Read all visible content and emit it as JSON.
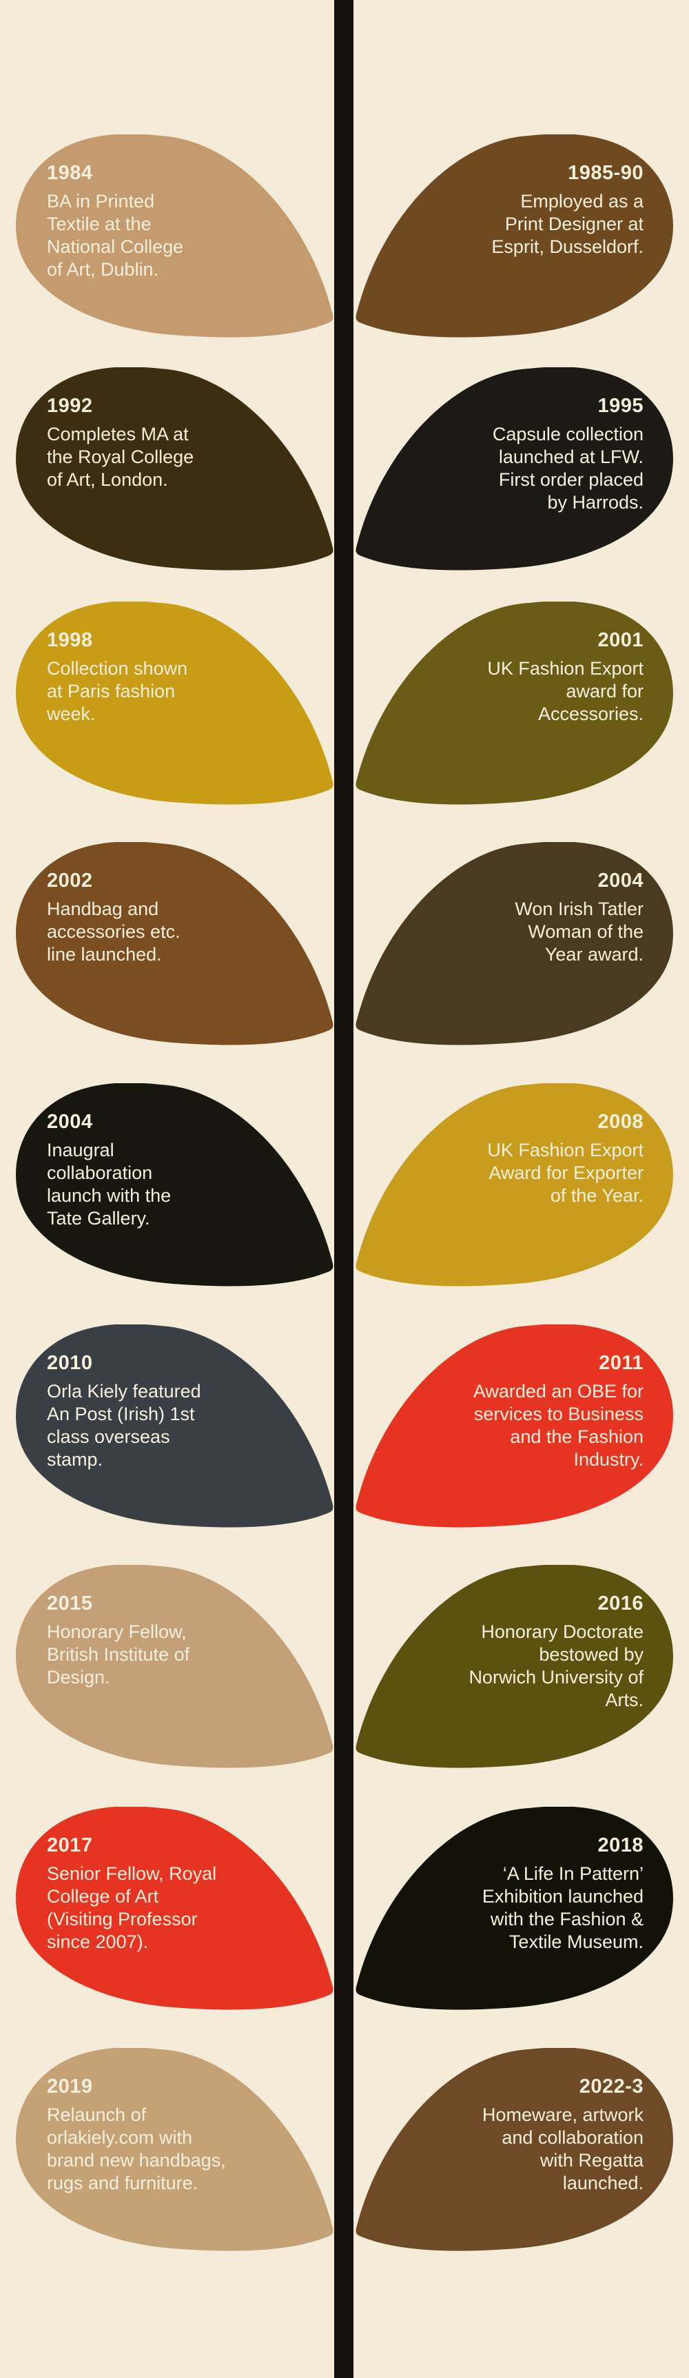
{
  "page": {
    "background_color": "#f4ecd8",
    "stem_color": "#14110c",
    "text_color": "#f6efdc"
  },
  "timeline": {
    "milestones": [
      {
        "year": "1984",
        "side": "left",
        "color": "#c49b6e",
        "description": "BA in Printed\nTextile at the\nNational College\nof Art, Dublin."
      },
      {
        "year": "1985-90",
        "side": "right",
        "color": "#6f4a21",
        "description": "Employed as a\nPrint Designer at\nEsprit, Dusseldorf."
      },
      {
        "year": "1992",
        "side": "left",
        "color": "#3d2e12",
        "description": "Completes MA at\nthe Royal College\nof Art, London."
      },
      {
        "year": "1995",
        "side": "right",
        "color": "#1b1a15",
        "description": "Capsule collection\nlaunched at LFW.\nFirst order placed\nby Harrods."
      },
      {
        "year": "1998",
        "side": "left",
        "color": "#c89c15",
        "description": "Collection shown\nat Paris fashion\nweek."
      },
      {
        "year": "2001",
        "side": "right",
        "color": "#6b5c15",
        "description": "UK Fashion Export\naward for\nAccessories."
      },
      {
        "year": "2002",
        "side": "left",
        "color": "#7b4e21",
        "description": "Handbag and\naccessories etc.\nline launched."
      },
      {
        "year": "2004",
        "side": "right",
        "color": "#493a20",
        "description": "Won Irish Tatler\nWoman of the\nYear award."
      },
      {
        "year": "2004",
        "side": "left",
        "color": "#18170f",
        "description": "Inaugral\ncollaboration\nlaunch with the\nTate Gallery."
      },
      {
        "year": "2008",
        "side": "right",
        "color": "#c89d1e",
        "description": "UK Fashion Export\nAward for Exporter\nof the Year."
      },
      {
        "year": "2010",
        "side": "left",
        "color": "#3a3f45",
        "description": "Orla Kiely featured\nAn Post (Irish) 1st\nclass overseas\nstamp."
      },
      {
        "year": "2011",
        "side": "right",
        "color": "#e73321",
        "description": "Awarded an OBE for\nservices to Business\nand the Fashion\nIndustry."
      },
      {
        "year": "2015",
        "side": "left",
        "color": "#c3a078",
        "description": "Honorary Fellow,\nBritish Institute of\nDesign."
      },
      {
        "year": "2016",
        "side": "right",
        "color": "#5d5110",
        "description": "Honorary Doctorate\nbestowed by\nNorwich University of\nArts."
      },
      {
        "year": "2017",
        "side": "left",
        "color": "#e73321",
        "description": "Senior Fellow, Royal\nCollege of Art\n(Visiting Professor\nsince 2007)."
      },
      {
        "year": "2018",
        "side": "right",
        "color": "#131208",
        "description": "‘A Life In Pattern’\nExhibition launched\nwith the Fashion &\nTextile Museum."
      },
      {
        "year": "2019",
        "side": "left",
        "color": "#c5a276",
        "description": "Relaunch of\norlakiely.com with\nbrand new handbags,\nrugs and furniture."
      },
      {
        "year": "2022-3",
        "side": "right",
        "color": "#6e4a26",
        "description": "Homeware, artwork\nand collaboration\nwith Regatta\nlaunched."
      }
    ]
  }
}
